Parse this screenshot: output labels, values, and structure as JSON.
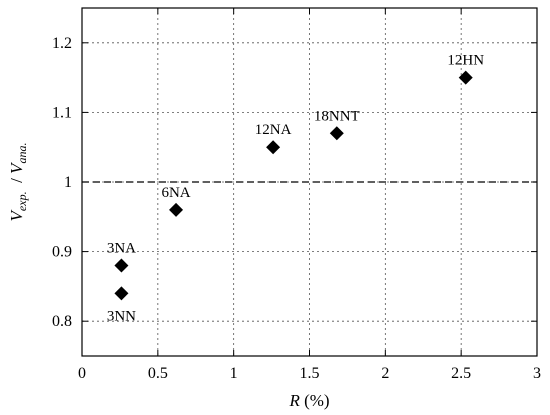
{
  "chart_data": {
    "type": "scatter",
    "xlabel_italic": "R",
    "xlabel_rest": " (%)",
    "ylabel": {
      "num_main": "V",
      "num_sub": "exp.",
      "slash": "  / ",
      "den_main": "V",
      "den_sub": "ana."
    },
    "xlim": [
      0,
      3
    ],
    "ylim": [
      0.75,
      1.25
    ],
    "x_ticks": [
      0,
      0.5,
      1,
      1.5,
      2,
      2.5,
      3
    ],
    "x_tick_labels": [
      "0",
      "0.5",
      "1",
      "1.5",
      "2",
      "2.5",
      "3"
    ],
    "y_ticks": [
      0.8,
      0.9,
      1.0,
      1.1,
      1.2
    ],
    "y_tick_labels": [
      "0.8",
      "0.9",
      "1",
      "1.1",
      "1.2"
    ],
    "grid": true,
    "reference_line_y": 1.0,
    "points": [
      {
        "label": "3NN",
        "x": 0.26,
        "y": 0.84,
        "label_pos": "below"
      },
      {
        "label": "3NA",
        "x": 0.26,
        "y": 0.88,
        "label_pos": "above"
      },
      {
        "label": "6NA",
        "x": 0.62,
        "y": 0.96,
        "label_pos": "above"
      },
      {
        "label": "12NA",
        "x": 1.26,
        "y": 1.05,
        "label_pos": "above"
      },
      {
        "label": "18NNT",
        "x": 1.68,
        "y": 1.07,
        "label_pos": "above"
      },
      {
        "label": "12HN",
        "x": 2.53,
        "y": 1.15,
        "label_pos": "above"
      }
    ]
  }
}
